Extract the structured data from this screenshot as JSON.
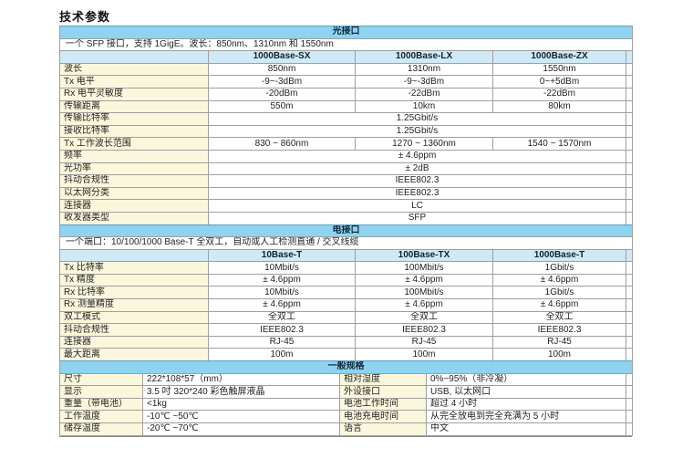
{
  "title": "技术参数",
  "colors": {
    "section_header_bg": "#8ed3f0",
    "column_header_bg": "#cfe9f6",
    "label_bg": "#fbf7dc",
    "border": "#9f9f9f"
  },
  "sections": [
    {
      "id": "optical",
      "type": "matrix",
      "header": "光接口",
      "note": "一个 SFP 接口，支持 1GigE。波长：850nm、1310nm 和 1550nm",
      "columns": [
        "",
        "1000Base-SX",
        "1000Base-LX",
        "1000Base-ZX"
      ],
      "rows": [
        {
          "label": "波长",
          "values": [
            "850nm",
            "1310nm",
            "1550nm"
          ]
        },
        {
          "label": "Tx 电平",
          "values": [
            "-9~-3dBm",
            "-9~-3dBm",
            "0~+5dBm"
          ]
        },
        {
          "label": "Rx 电平灵敏度",
          "values": [
            "-20dBm",
            "-22dBm",
            "-22dBm"
          ]
        },
        {
          "label": "传输距离",
          "values": [
            "550m",
            "10km",
            "80km"
          ]
        },
        {
          "label": "传输比特率",
          "span": "1.25Gbit/s"
        },
        {
          "label": "接收比特率",
          "span": "1.25Gbit/s"
        },
        {
          "label": "Tx 工作波长范围",
          "values": [
            "830 ~ 860nm",
            "1270 ~ 1360nm",
            "1540 ~ 1570nm"
          ]
        },
        {
          "label": "频率",
          "span": "± 4.6ppm"
        },
        {
          "label": "光功率",
          "span": "± 2dB"
        },
        {
          "label": "抖动合规性",
          "span": "IEEE802.3"
        },
        {
          "label": "以太网分类",
          "span": "IEEE802.3"
        },
        {
          "label": "连接器",
          "span": "LC"
        },
        {
          "label": "收发器类型",
          "span": "SFP"
        }
      ]
    },
    {
      "id": "electrical",
      "type": "matrix",
      "header": "电接口",
      "note": "一个端口：10/100/1000 Base-T 全双工，自动或人工检测直通 / 交叉线缆",
      "columns": [
        "",
        "10Base-T",
        "100Base-TX",
        "1000Base-T"
      ],
      "rows": [
        {
          "label": "Tx 比特率",
          "values": [
            "10Mbit/s",
            "100Mbit/s",
            "1Gbit/s"
          ]
        },
        {
          "label": "Tx 精度",
          "values": [
            "± 4.6ppm",
            "± 4.6ppm",
            "± 4.6ppm"
          ]
        },
        {
          "label": "Rx 比特率",
          "values": [
            "10Mbit/s",
            "100Mbit/s",
            "1Gbit/s"
          ]
        },
        {
          "label": "Rx 测量精度",
          "values": [
            "± 4.6ppm",
            "± 4.6ppm",
            "± 4.6ppm"
          ]
        },
        {
          "label": "双工模式",
          "values": [
            "全双工",
            "全双工",
            "全双工"
          ]
        },
        {
          "label": "抖动合规性",
          "values": [
            "IEEE802.3",
            "IEEE802.3",
            "IEEE802.3"
          ]
        },
        {
          "label": "连接器",
          "values": [
            "RJ-45",
            "RJ-45",
            "RJ-45"
          ]
        },
        {
          "label": "最大距离",
          "values": [
            "100m",
            "100m",
            "100m"
          ]
        }
      ]
    },
    {
      "id": "general",
      "type": "pairs",
      "header": "一般规格",
      "rows": [
        {
          "cells": [
            "尺寸",
            "222*108*57（mm）",
            "相对湿度",
            "0%~95%（非冷凝）"
          ]
        },
        {
          "cells": [
            "显示",
            "3.5 吋 320*240 彩色触屏液晶",
            "外设接口",
            "USB, 以太网口"
          ]
        },
        {
          "cells": [
            "重量（带电池）",
            "<1kg",
            "电池工作时间",
            "超过 4 小时"
          ]
        },
        {
          "cells": [
            "工作温度",
            "-10℃ ~50℃",
            "电池充电时间",
            "从完全放电到完全充满为 5 小时"
          ]
        },
        {
          "cells": [
            "储存温度",
            "-20℃ ~70℃",
            "语言",
            "中文"
          ]
        }
      ]
    }
  ]
}
